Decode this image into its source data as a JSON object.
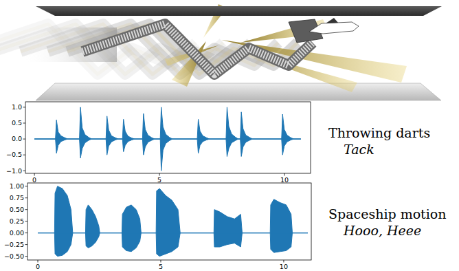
{
  "chart_data": [
    {
      "type": "area",
      "title": "Throwing darts",
      "subtitle": "Tack",
      "x": [
        0,
        0.84,
        0.88,
        0.95,
        1.06,
        1.21,
        1.33,
        1.8,
        1.84,
        1.91,
        2.02,
        2.17,
        2.29,
        2.86,
        2.9,
        2.97,
        3.08,
        3.23,
        3.35,
        3.52,
        3.56,
        3.63,
        3.74,
        3.89,
        4.01,
        4.32,
        4.36,
        4.43,
        4.54,
        4.69,
        4.81,
        5.03,
        5.07,
        5.14,
        5.25,
        5.4,
        5.52,
        6.51,
        6.55,
        6.62,
        6.73,
        6.88,
        7.0,
        7.66,
        7.7,
        7.77,
        7.88,
        8.03,
        8.15,
        8.23,
        8.27,
        8.34,
        8.45,
        8.6,
        8.72,
        9.88,
        9.92,
        9.99,
        10.1,
        10.25,
        10.37,
        10.65
      ],
      "series": [
        {
          "color": "#1f77b4",
          "values": [
            0,
            0,
            0.6,
            0.22,
            0.1,
            0.04,
            0,
            0,
            1.0,
            0.35,
            0.14,
            0.05,
            0,
            0,
            0.72,
            0.28,
            0.1,
            0.04,
            0,
            0,
            0.62,
            0.24,
            0.09,
            0.03,
            0,
            0,
            0.8,
            0.3,
            0.12,
            0.04,
            0,
            0,
            1.0,
            0.38,
            0.15,
            0.05,
            0,
            0,
            0.62,
            0.25,
            0.1,
            0.04,
            0,
            0,
            1.0,
            0.4,
            0.16,
            0.06,
            0,
            0,
            0.85,
            0.32,
            0.12,
            0.05,
            0,
            0,
            0.78,
            0.3,
            0.12,
            0.04,
            0,
            0
          ]
        },
        {
          "color": "#1f77b4",
          "values": [
            0,
            0,
            -0.45,
            -0.2,
            -0.08,
            -0.03,
            0,
            0,
            -0.6,
            -0.3,
            -0.12,
            -0.04,
            0,
            0,
            -0.5,
            -0.22,
            -0.09,
            -0.03,
            0,
            0,
            -0.4,
            -0.2,
            -0.08,
            -0.03,
            0,
            0,
            -0.5,
            -0.25,
            -0.1,
            -0.04,
            0,
            0,
            -1.0,
            -0.35,
            -0.14,
            -0.05,
            0,
            0,
            -0.45,
            -0.2,
            -0.08,
            -0.03,
            0,
            0,
            -0.55,
            -0.3,
            -0.12,
            -0.05,
            0,
            0,
            -0.55,
            -0.25,
            -0.1,
            -0.04,
            0,
            0,
            -0.5,
            -0.22,
            -0.09,
            -0.03,
            0,
            0
          ]
        }
      ],
      "xlim": [
        -0.36,
        11.04
      ],
      "xticks": [
        0,
        5,
        10
      ],
      "ylim": [
        -1.08,
        1.17
      ],
      "yticks": [
        {
          "value": -1,
          "label": "−1.0"
        },
        {
          "value": -0.5,
          "label": "−0.5"
        },
        {
          "value": 0,
          "label": "0.0"
        },
        {
          "value": 0.5,
          "label": "0.5"
        },
        {
          "value": 1,
          "label": "1.0"
        }
      ],
      "grid": false
    },
    {
      "type": "area",
      "title": "Spaceship motion",
      "subtitle": "Hooo, Heee",
      "x": [
        0,
        0.68,
        0.7,
        0.8,
        1.0,
        1.2,
        1.35,
        1.42,
        1.94,
        1.96,
        2.05,
        2.2,
        2.35,
        2.48,
        2.52,
        3.42,
        3.44,
        3.6,
        3.8,
        4.0,
        4.15,
        4.2,
        4.81,
        4.83,
        4.95,
        5.2,
        5.45,
        5.7,
        5.79,
        7.16,
        7.18,
        7.4,
        7.7,
        8.0,
        8.25,
        8.31,
        9.45,
        9.47,
        9.6,
        9.85,
        10.1,
        10.3,
        10.35,
        10.98
      ],
      "series": [
        {
          "color": "#1f77b4",
          "values": [
            0,
            0,
            0.85,
            1.0,
            0.95,
            0.8,
            0.5,
            0,
            0,
            0.5,
            0.6,
            0.5,
            0.35,
            0.15,
            0,
            0,
            0.4,
            0.55,
            0.6,
            0.5,
            0.3,
            0,
            0,
            0.9,
            0.95,
            0.8,
            0.7,
            0.5,
            0,
            0,
            0.5,
            0.45,
            0.35,
            0.3,
            0.4,
            0,
            0,
            0.6,
            0.72,
            0.65,
            0.6,
            0.4,
            0,
            0
          ]
        },
        {
          "color": "#1f77b4",
          "values": [
            0,
            0,
            -0.45,
            -0.5,
            -0.48,
            -0.4,
            -0.25,
            0,
            0,
            -0.28,
            -0.32,
            -0.28,
            -0.2,
            -0.08,
            0,
            0,
            -0.3,
            -0.38,
            -0.4,
            -0.32,
            -0.18,
            0,
            0,
            -0.45,
            -0.5,
            -0.45,
            -0.4,
            -0.3,
            0,
            0,
            -0.3,
            -0.3,
            -0.25,
            -0.22,
            -0.3,
            0,
            0,
            -0.35,
            -0.42,
            -0.4,
            -0.38,
            -0.3,
            0,
            0
          ]
        }
      ],
      "xlim": [
        -0.42,
        11.12
      ],
      "xticks": [
        0,
        5,
        10
      ],
      "ylim": [
        -0.58,
        1.07
      ],
      "yticks": [
        {
          "value": -0.5,
          "label": "−0.50"
        },
        {
          "value": -0.25,
          "label": "−0.25"
        },
        {
          "value": 0,
          "label": "0.00"
        },
        {
          "value": 0.25,
          "label": "0.25"
        },
        {
          "value": 0.5,
          "label": "0.50"
        },
        {
          "value": 0.75,
          "label": "0.75"
        },
        {
          "value": 1,
          "label": "1.00"
        }
      ],
      "grid": false
    }
  ]
}
